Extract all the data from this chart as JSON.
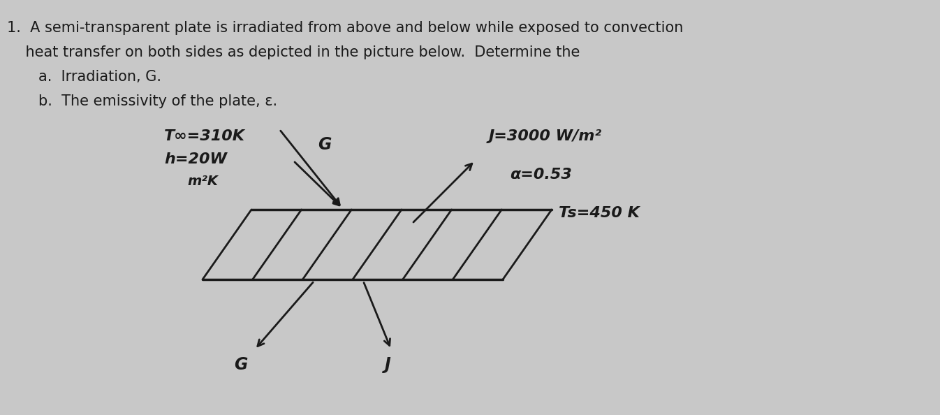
{
  "bg_color": "#c8c8c8",
  "font_color": "#1a1a1a",
  "plate_color": "#1a1a1a",
  "hatch_color": "#1a1a1a",
  "arrow_color": "#1a1a1a",
  "font_size_body": 15,
  "font_size_diagram": 14,
  "line1": "1.  A semi-transparent plate is irradiated from above and below while exposed to convection",
  "line2": "    heat transfer on both sides as depicted in the picture below.  Determine the",
  "line_a": "a.  Irradiation, G.",
  "line_b": "b.  The emissivity of the plate, ε.",
  "lbl_Tinf": "T∞=310K",
  "lbl_h": "h=20W",
  "lbl_m2k": "    m²K",
  "lbl_G_top": "G",
  "lbl_J_top": "J=3000 W/m²",
  "lbl_alpha": "α=0.53",
  "lbl_Ts": "Ts=450 K",
  "lbl_G_bot": "G",
  "lbl_J_bot": "J",
  "n_hatch": 5
}
